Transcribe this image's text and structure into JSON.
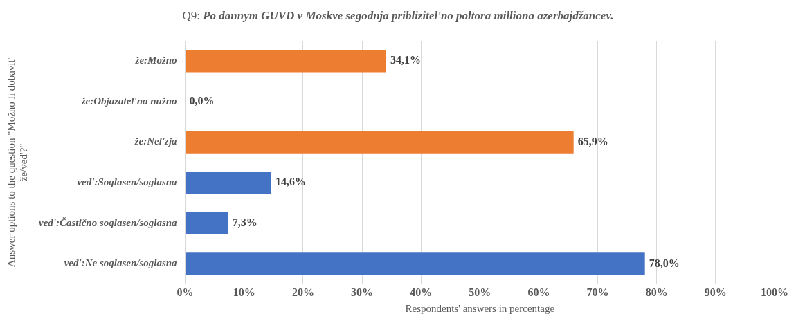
{
  "chart_data": {
    "type": "bar",
    "orientation": "horizontal",
    "title": "Q9: Po dannym GUVD v Moskve segodnja priblizitel'no poltora milliona azerbajdžancev.",
    "xlabel": "Respondents' answers in percentage",
    "ylabel": "Answer options to the question \"Možno li dobavit' že/ved'?\"",
    "categories": [
      "že:Možno",
      "že:Objazatel'no nužno",
      "že:Nel'zja",
      "ved':Soglasen/soglasna",
      "ved':Častično soglasen/soglasna",
      "ved':Ne soglasen/soglasna"
    ],
    "values": [
      34.1,
      0,
      65.9,
      14.6,
      7.3,
      78.0
    ],
    "colors": [
      "#ed7d31",
      "#ed7d31",
      "#ed7d31",
      "#4472c4",
      "#4472c4",
      "#4472c4"
    ],
    "value_labels": [
      "34,1%",
      "0,0%",
      "65,9%",
      "14,6%",
      "7,3%",
      "78,0%"
    ],
    "xlim": [
      0,
      100
    ],
    "xticks": [
      {
        "value": 0,
        "label": "0%"
      },
      {
        "value": 10,
        "label": "10%"
      },
      {
        "value": 20,
        "label": "20%"
      },
      {
        "value": 30,
        "label": "30%"
      },
      {
        "value": 40,
        "label": "40%"
      },
      {
        "value": 50,
        "label": "50%"
      },
      {
        "value": 60,
        "label": "60%"
      },
      {
        "value": 70,
        "label": "70%"
      },
      {
        "value": 80,
        "label": "80%"
      },
      {
        "value": 90,
        "label": "90%"
      },
      {
        "value": 100,
        "label": "100%"
      }
    ],
    "grid": "x",
    "legend": false
  }
}
